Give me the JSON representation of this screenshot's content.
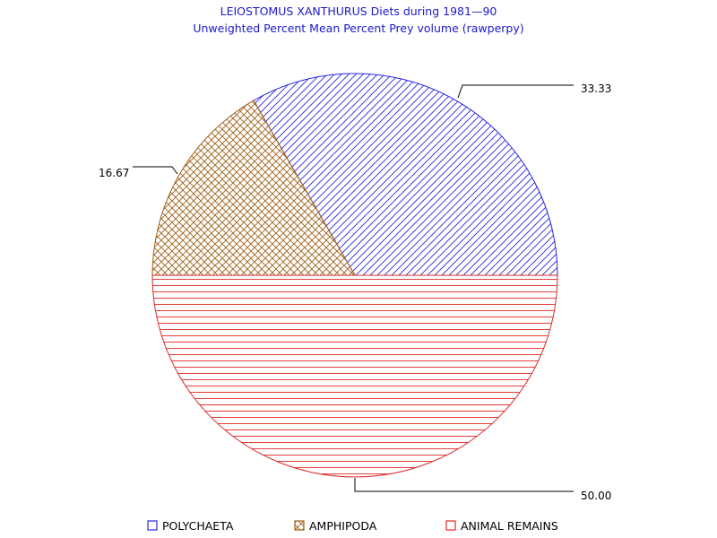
{
  "chart_data": {
    "type": "pie",
    "title": "LEIOSTOMUS XANTHURUS Diets during 1981—90",
    "subtitle": "Unweighted Percent Mean Percent Prey  volume (rawperpy)",
    "slices": [
      {
        "label": "POLYCHAETA",
        "value": 33.33,
        "value_label": "33.33",
        "color": "#2828e0",
        "pattern": "diagonal-lines"
      },
      {
        "label": "AMPHIPODA",
        "value": 16.67,
        "value_label": "16.67",
        "color": "#a06018",
        "pattern": "crosshatch"
      },
      {
        "label": "ANIMAL REMAINS",
        "value": 50.0,
        "value_label": "50.00",
        "color": "#e02828",
        "pattern": "horizontal-lines"
      }
    ],
    "legend_placement": "bottom"
  }
}
